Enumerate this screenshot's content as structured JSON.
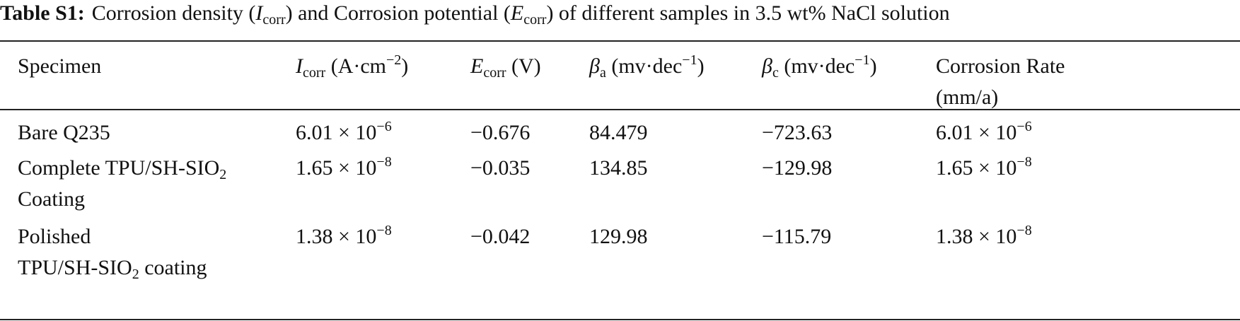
{
  "title": {
    "label": "Table S1:",
    "parts": [
      "Corrosion density (",
      {
        "i": "I"
      },
      {
        "sub": "corr"
      },
      ") and Corrosion potential (",
      {
        "i": "E"
      },
      {
        "sub": "corr"
      },
      ") of different samples in 3.5 wt% NaCl solution"
    ]
  },
  "table": {
    "headers": [
      [
        [
          "Specimen"
        ]
      ],
      [
        [
          {
            "i": "I"
          },
          {
            "sub": "corr"
          },
          " (A·cm",
          {
            "sup": "−2"
          },
          ")"
        ]
      ],
      [
        [
          {
            "i": "E"
          },
          {
            "sub": "corr"
          },
          " (V)"
        ]
      ],
      [
        [
          {
            "i": "β"
          },
          {
            "sub": "a"
          },
          " (mv·dec",
          {
            "sup": "−1"
          },
          ")"
        ]
      ],
      [
        [
          {
            "i": "β"
          },
          {
            "sub": "c"
          },
          " (mv·dec",
          {
            "sup": "−1"
          },
          ")"
        ]
      ],
      [
        [
          "Corrosion Rate"
        ],
        [
          "(mm/a)"
        ]
      ]
    ],
    "rows": [
      [
        [
          [
            "Bare Q235"
          ]
        ],
        [
          [
            "6.01 × 10",
            {
              "sup": "−6"
            }
          ]
        ],
        [
          [
            "−0.676"
          ]
        ],
        [
          [
            "84.479"
          ]
        ],
        [
          [
            "−723.63"
          ]
        ],
        [
          [
            "6.01 × 10",
            {
              "sup": "−6"
            }
          ]
        ]
      ],
      [
        [
          [
            "Complete TPU/SH-SIO",
            {
              "sub": "2"
            }
          ],
          [
            "Coating"
          ]
        ],
        [
          [
            "1.65 × 10",
            {
              "sup": "−8"
            }
          ]
        ],
        [
          [
            "−0.035"
          ]
        ],
        [
          [
            "134.85"
          ]
        ],
        [
          [
            "−129.98"
          ]
        ],
        [
          [
            "1.65 × 10",
            {
              "sup": "−8"
            }
          ]
        ]
      ],
      [
        [
          [
            "Polished"
          ],
          [
            "TPU/SH-SIO",
            {
              "sub": "2"
            },
            " coating"
          ]
        ],
        [
          [
            "1.38 × 10",
            {
              "sup": "−8"
            }
          ]
        ],
        [
          [
            "−0.042"
          ]
        ],
        [
          [
            "129.98"
          ]
        ],
        [
          [
            "−115.79"
          ]
        ],
        [
          [
            "1.38 × 10",
            {
              "sup": "−8"
            }
          ]
        ]
      ]
    ]
  }
}
